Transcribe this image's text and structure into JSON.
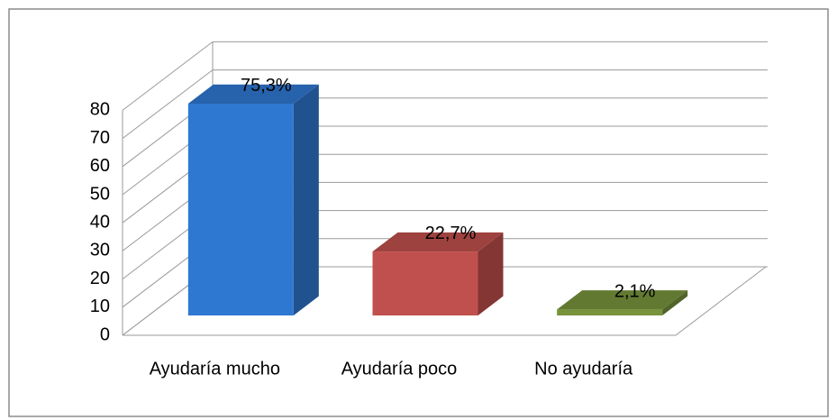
{
  "chart_data": {
    "type": "bar3d",
    "categories": [
      "Ayudaría mucho",
      "Ayudaría poco",
      "No ayudaría"
    ],
    "values": [
      75.3,
      22.7,
      2.1
    ],
    "value_labels": [
      "75,3%",
      "22,7%",
      "2,1%"
    ],
    "colors": [
      "#2f78d2",
      "#c0504d",
      "#77933c"
    ],
    "ylim": [
      0,
      80
    ],
    "yticks": [
      0,
      10,
      20,
      30,
      40,
      50,
      60,
      70,
      80
    ],
    "grid": true
  }
}
